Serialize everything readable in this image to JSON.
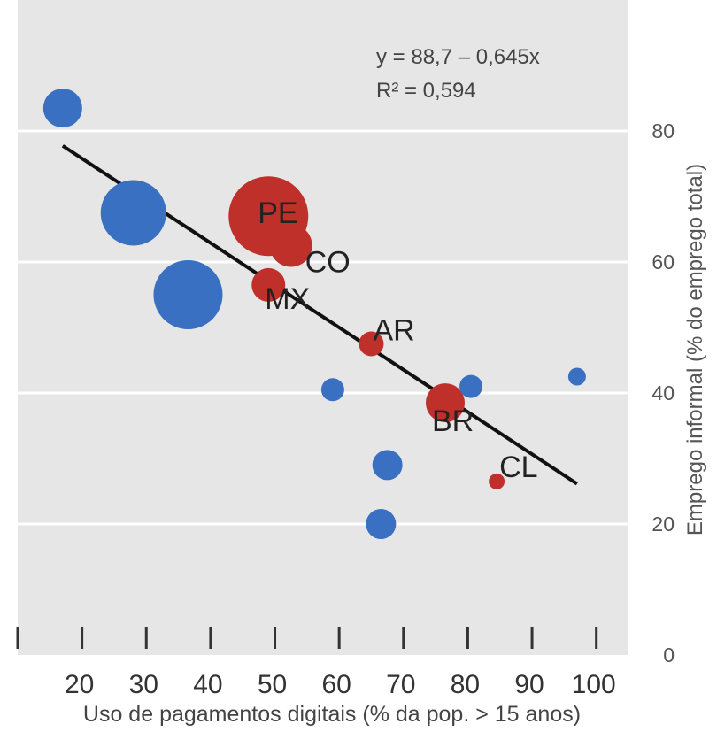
{
  "chart_data": {
    "type": "scatter",
    "title": "",
    "xlabel": "Uso de pagamentos digitais (% da pop. > 15 anos)",
    "ylabel": "Emprego informal (% do emprego total)",
    "xlim": [
      10,
      105
    ],
    "ylim": [
      0,
      100
    ],
    "x_ticks": [
      "20",
      "30",
      "40",
      "50",
      "60",
      "70",
      "80",
      "90",
      "100"
    ],
    "y_ticks": [
      "80",
      "60",
      "40",
      "20",
      "0"
    ],
    "grid": true,
    "legend": "none",
    "colors": {
      "highlighted": "#c0302a",
      "other": "#3a70c2",
      "background": "#e6e6e6",
      "trendline": "#111111"
    },
    "annotations": {
      "equation": "y = 88,7 – 0,645x",
      "r2": "R² = 0,594"
    },
    "trendline": {
      "intercept": 88.7,
      "slope": -0.645,
      "x_range": [
        17,
        97
      ]
    },
    "points": [
      {
        "x": 17,
        "y": 83.5,
        "size": 22,
        "group": "other",
        "label": ""
      },
      {
        "x": 28,
        "y": 67.5,
        "size": 37,
        "group": "other",
        "label": ""
      },
      {
        "x": 36.5,
        "y": 55,
        "size": 39,
        "group": "other",
        "label": ""
      },
      {
        "x": 49,
        "y": 67,
        "size": 45,
        "group": "highlighted",
        "label": "PE"
      },
      {
        "x": 52.5,
        "y": 62.5,
        "size": 24,
        "group": "highlighted",
        "label": "CO"
      },
      {
        "x": 49,
        "y": 56.5,
        "size": 19,
        "group": "highlighted",
        "label": "MX"
      },
      {
        "x": 65,
        "y": 47.5,
        "size": 14,
        "group": "highlighted",
        "label": "AR"
      },
      {
        "x": 59,
        "y": 40.5,
        "size": 13,
        "group": "other",
        "label": ""
      },
      {
        "x": 76.5,
        "y": 38.5,
        "size": 22,
        "group": "highlighted",
        "label": "BR"
      },
      {
        "x": 80.5,
        "y": 41,
        "size": 13,
        "group": "other",
        "label": ""
      },
      {
        "x": 97,
        "y": 42.5,
        "size": 10,
        "group": "other",
        "label": ""
      },
      {
        "x": 67.5,
        "y": 29,
        "size": 17,
        "group": "other",
        "label": ""
      },
      {
        "x": 84.5,
        "y": 26.5,
        "size": 9,
        "group": "highlighted",
        "label": "CL"
      },
      {
        "x": 66.5,
        "y": 20,
        "size": 17,
        "group": "other",
        "label": ""
      }
    ]
  }
}
